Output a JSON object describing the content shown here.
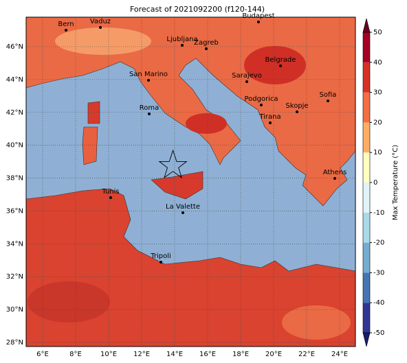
{
  "map": {
    "title": "Forecast of 2021092200 (f120-144)",
    "lat_labels": [
      "46°N",
      "44°N",
      "42°N",
      "40°N",
      "38°N",
      "36°N",
      "34°N",
      "32°N",
      "30°N",
      "28°N"
    ],
    "lon_labels": [
      "6°E",
      "8°E",
      "10°E",
      "12°E",
      "14°E",
      "16°E",
      "18°E",
      "20°E",
      "22°E",
      "24°E"
    ],
    "cities": [
      "Bern",
      "Vaduz",
      "Budapest",
      "Ljubljana",
      "Zagreb",
      "Belgrade",
      "San Marino",
      "Sarajevo",
      "Sofia",
      "Roma",
      "Podgorica",
      "Skopje",
      "Tirana",
      "Athens",
      "Tunis",
      "La Valette",
      "Tripoli"
    ],
    "colorbar": {
      "label": "Max Temperature (°C)",
      "ticks": [
        -50,
        -40,
        -30,
        -20,
        -10,
        0,
        10,
        20,
        30,
        40,
        50
      ]
    }
  }
}
